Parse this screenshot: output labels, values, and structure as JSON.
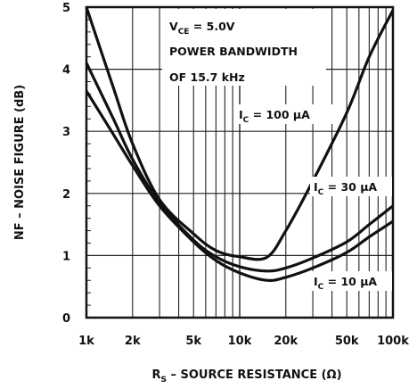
{
  "chart_data": {
    "type": "line",
    "title": "",
    "xlabel": {
      "main": "R",
      "sub": "S",
      "rest": " – SOURCE RESISTANCE (Ω)"
    },
    "ylabel": "NF – NOISE FIGURE (dB)",
    "x_scale": "log",
    "xlim": [
      1000,
      100000
    ],
    "ylim": [
      0,
      5
    ],
    "grid": true,
    "x_ticks": [
      {
        "value": 1000,
        "label": "1k"
      },
      {
        "value": 2000,
        "label": "2k"
      },
      {
        "value": 5000,
        "label": "5k"
      },
      {
        "value": 10000,
        "label": "10k"
      },
      {
        "value": 20000,
        "label": "20k"
      },
      {
        "value": 50000,
        "label": "50k"
      },
      {
        "value": 100000,
        "label": "100k"
      }
    ],
    "y_ticks": [
      {
        "value": 0,
        "label": "0"
      },
      {
        "value": 1,
        "label": "1"
      },
      {
        "value": 2,
        "label": "2"
      },
      {
        "value": 3,
        "label": "3"
      },
      {
        "value": 4,
        "label": "4"
      },
      {
        "value": 5,
        "label": "5"
      }
    ],
    "annotations": {
      "vce": {
        "main": "V",
        "sub": "CE",
        "rest": " = 5.0V"
      },
      "bw1": "POWER BANDWIDTH",
      "bw2": "OF 15.7 kHz"
    },
    "series": [
      {
        "label": {
          "main": "I",
          "sub": "C",
          "rest": " = 100 μA"
        },
        "color": "#111111",
        "points": [
          [
            1000,
            5.0
          ],
          [
            1500,
            3.7
          ],
          [
            2000,
            2.8
          ],
          [
            3000,
            1.9
          ],
          [
            5000,
            1.35
          ],
          [
            7000,
            1.08
          ],
          [
            10000,
            0.98
          ],
          [
            15000,
            0.97
          ],
          [
            20000,
            1.4
          ],
          [
            30000,
            2.2
          ],
          [
            50000,
            3.3
          ],
          [
            70000,
            4.2
          ],
          [
            100000,
            4.95
          ]
        ]
      },
      {
        "label": {
          "main": "I",
          "sub": "C",
          "rest": " = 30 μA"
        },
        "color": "#111111",
        "points": [
          [
            1000,
            4.1
          ],
          [
            1500,
            3.2
          ],
          [
            2000,
            2.55
          ],
          [
            3000,
            1.85
          ],
          [
            5000,
            1.25
          ],
          [
            7000,
            0.98
          ],
          [
            10000,
            0.82
          ],
          [
            15000,
            0.75
          ],
          [
            20000,
            0.8
          ],
          [
            30000,
            0.96
          ],
          [
            50000,
            1.22
          ],
          [
            70000,
            1.5
          ],
          [
            100000,
            1.8
          ]
        ]
      },
      {
        "label": {
          "main": "I",
          "sub": "C",
          "rest": " = 10 μA"
        },
        "color": "#111111",
        "points": [
          [
            1000,
            3.65
          ],
          [
            1500,
            2.95
          ],
          [
            2000,
            2.45
          ],
          [
            3000,
            1.8
          ],
          [
            5000,
            1.22
          ],
          [
            7000,
            0.92
          ],
          [
            10000,
            0.72
          ],
          [
            15000,
            0.6
          ],
          [
            20000,
            0.65
          ],
          [
            30000,
            0.8
          ],
          [
            50000,
            1.05
          ],
          [
            70000,
            1.3
          ],
          [
            100000,
            1.55
          ]
        ]
      }
    ]
  }
}
